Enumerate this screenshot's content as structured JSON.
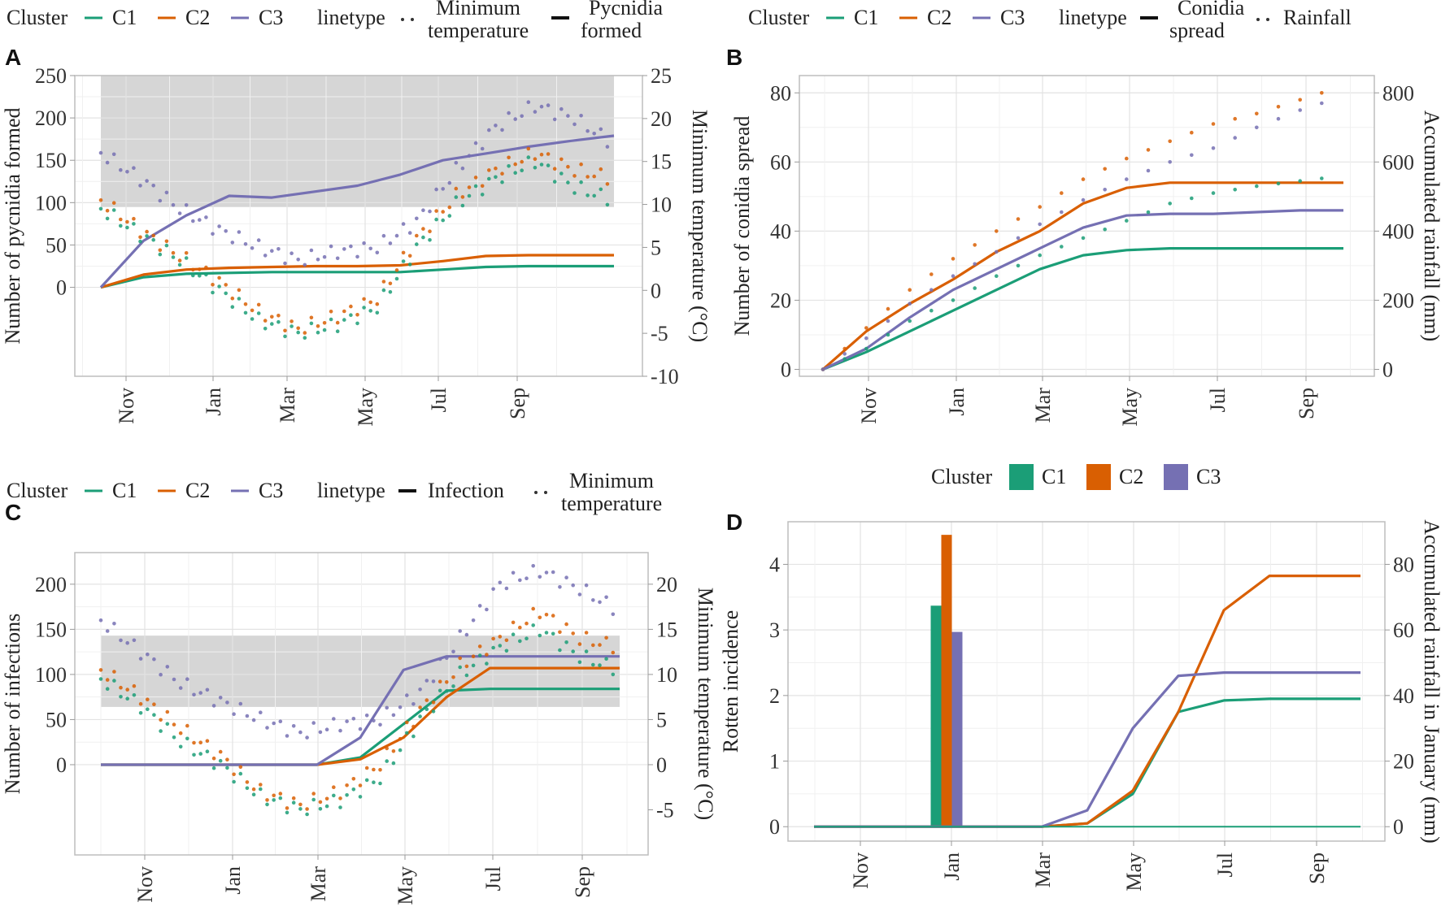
{
  "colors": {
    "C1": "#1b9e77",
    "C2": "#d95f02",
    "C3": "#7570b3",
    "shade": "#d6d6d6"
  },
  "chart_data": [
    {
      "panel": "A",
      "type": "line",
      "legend": {
        "cluster_title": "Cluster",
        "clusters": [
          "C1",
          "C2",
          "C3"
        ],
        "linetype_title": "linetype",
        "linetypes": [
          {
            "label_lines": [
              "Minimum",
              "temperature"
            ],
            "style": "dotted"
          },
          {
            "label_lines": [
              "Pycnidia",
              "formed"
            ],
            "style": "solid"
          }
        ],
        "position": "top"
      },
      "xlabel": "",
      "x_ticks": [
        "Nov",
        "Jan",
        "Mar",
        "May",
        "Jul",
        "Sep"
      ],
      "x_range": [
        "Oct",
        "Sep"
      ],
      "ylabel": "Number of pycnidia formed",
      "y_ticks": [
        0,
        50,
        100,
        150,
        200,
        250
      ],
      "ylim": [
        -105,
        250
      ],
      "y2label": "Minimum temperature (°C)",
      "y2_ticks": [
        -10,
        -5,
        0,
        5,
        10,
        15,
        20,
        25
      ],
      "y2lim": [
        -10,
        25
      ],
      "shaded_band_y2": [
        9.7,
        25
      ],
      "grid": true,
      "solid_series_month_index": [
        0,
        1,
        2,
        3,
        4,
        5,
        6,
        7,
        8,
        9,
        10,
        11,
        12
      ],
      "series": [
        {
          "name": "C1",
          "kind": "Pycnidia formed",
          "values": [
            0,
            12,
            16,
            17,
            18,
            18,
            18,
            18,
            21,
            24,
            25,
            25,
            25
          ]
        },
        {
          "name": "C2",
          "kind": "Pycnidia formed",
          "values": [
            0,
            15,
            21,
            23,
            24,
            25,
            25,
            26,
            31,
            37,
            38,
            38,
            38
          ]
        },
        {
          "name": "C3",
          "kind": "Pycnidia formed",
          "values": [
            0,
            55,
            85,
            108,
            106,
            113,
            120,
            133,
            150,
            158,
            166,
            173,
            179
          ]
        },
        {
          "name": "C1",
          "kind": "Minimum temperature",
          "values": [
            9.5,
            6.5,
            3.5,
            0,
            -3.5,
            -5,
            -4,
            -2,
            5,
            10,
            13,
            15,
            12,
            10.5
          ]
        },
        {
          "name": "C2",
          "kind": "Minimum temperature",
          "values": [
            10.5,
            7,
            4,
            1,
            -2.5,
            -4.5,
            -3,
            -1,
            6,
            11,
            14,
            16,
            14,
            13
          ]
        },
        {
          "name": "C3",
          "kind": "Minimum temperature",
          "values": [
            16,
            13,
            9.5,
            7,
            5,
            3.5,
            4.5,
            5,
            8,
            14,
            19,
            21.5,
            20,
            17
          ]
        }
      ]
    },
    {
      "panel": "B",
      "type": "line",
      "legend": {
        "cluster_title": "Cluster",
        "clusters": [
          "C1",
          "C2",
          "C3"
        ],
        "linetype_title": "linetype",
        "linetypes": [
          {
            "label_lines": [
              "Conidia",
              "spread"
            ],
            "style": "solid"
          },
          {
            "label_lines": [
              "Rainfall"
            ],
            "style": "dotted"
          }
        ],
        "position": "top"
      },
      "x_ticks": [
        "Nov",
        "Jan",
        "Mar",
        "May",
        "Jul",
        "Sep"
      ],
      "ylabel": "Number of conidia spread",
      "y_ticks": [
        0,
        20,
        40,
        60,
        80
      ],
      "ylim": [
        -2,
        85
      ],
      "y2label": "Accumulated rainfall (mm)",
      "y2_ticks": [
        0,
        200,
        400,
        600,
        800
      ],
      "y2lim": [
        -20,
        850
      ],
      "grid": true,
      "series": [
        {
          "name": "C1",
          "kind": "Conidia spread",
          "values": [
            0,
            5,
            11,
            17,
            23,
            29,
            33,
            34.5,
            35,
            35,
            35,
            35,
            35
          ]
        },
        {
          "name": "C2",
          "kind": "Conidia spread",
          "values": [
            0,
            11,
            19,
            26,
            34,
            40,
            48,
            52.5,
            54,
            54,
            54,
            54,
            54
          ]
        },
        {
          "name": "C3",
          "kind": "Conidia spread",
          "values": [
            0,
            6,
            15,
            23,
            29,
            35,
            41,
            44.5,
            45,
            45,
            45.5,
            46,
            46
          ]
        },
        {
          "name": "C1",
          "kind": "Rainfall",
          "values": [
            0,
            60,
            140,
            200,
            270,
            330,
            380,
            430,
            480,
            510,
            530,
            545,
            560
          ]
        },
        {
          "name": "C2",
          "kind": "Rainfall",
          "values": [
            0,
            120,
            230,
            320,
            400,
            470,
            550,
            610,
            660,
            710,
            740,
            780,
            820
          ]
        },
        {
          "name": "C3",
          "kind": "Rainfall",
          "values": [
            0,
            90,
            190,
            270,
            340,
            420,
            490,
            550,
            600,
            640,
            700,
            750,
            790
          ]
        }
      ]
    },
    {
      "panel": "C",
      "type": "line",
      "legend": {
        "cluster_title": "Cluster",
        "clusters": [
          "C1",
          "C2",
          "C3"
        ],
        "linetype_title": "linetype",
        "linetypes": [
          {
            "label_lines": [
              "Infection"
            ],
            "style": "solid"
          },
          {
            "label_lines": [
              "Minimum",
              "temperature"
            ],
            "style": "dotted"
          }
        ],
        "position": "top"
      },
      "x_ticks": [
        "Nov",
        "Jan",
        "Mar",
        "May",
        "Jul",
        "Sep"
      ],
      "ylabel": "Number of infections",
      "y_ticks": [
        0,
        50,
        100,
        150,
        200
      ],
      "ylim": [
        -100,
        235
      ],
      "y2label": "Minimum temperature (°C)",
      "y2_ticks": [
        -5,
        0,
        5,
        10,
        15,
        20
      ],
      "y2lim": [
        -10,
        23.5
      ],
      "shaded_band_y2": [
        6.4,
        14.3
      ],
      "grid": true,
      "series": [
        {
          "name": "C1",
          "kind": "Infection",
          "values": [
            0,
            0,
            0,
            0,
            0,
            0,
            8,
            45,
            82,
            84,
            84,
            84,
            84
          ]
        },
        {
          "name": "C2",
          "kind": "Infection",
          "values": [
            0,
            0,
            0,
            0,
            0,
            0,
            6,
            30,
            75,
            107,
            107,
            107,
            107
          ]
        },
        {
          "name": "C3",
          "kind": "Infection",
          "values": [
            0,
            0,
            0,
            0,
            0,
            0,
            30,
            105,
            120,
            120,
            120,
            120,
            120
          ]
        },
        {
          "name": "C1",
          "kind": "Minimum temperature",
          "values": [
            9.5,
            6.5,
            2.5,
            0,
            -3.5,
            -5,
            -4,
            -1.5,
            5,
            10,
            13,
            15,
            12,
            10.5
          ]
        },
        {
          "name": "C2",
          "kind": "Minimum temperature",
          "values": [
            10.5,
            7.5,
            4,
            1,
            -3,
            -4.5,
            -3,
            0,
            6,
            11,
            14,
            17,
            14,
            13
          ]
        },
        {
          "name": "C3",
          "kind": "Minimum temperature",
          "values": [
            16,
            12.5,
            9,
            7,
            5,
            3.5,
            4.5,
            5,
            8,
            14,
            20,
            21.5,
            19.5,
            17
          ]
        }
      ]
    },
    {
      "panel": "D",
      "type": "bar+line",
      "legend": {
        "cluster_title": "Cluster",
        "clusters": [
          "C1",
          "C2",
          "C3"
        ],
        "style": "filled-box",
        "position": "top"
      },
      "x_ticks": [
        "Nov",
        "Jan",
        "Mar",
        "May",
        "Jul",
        "Sep"
      ],
      "ylabel": "Rotten incidence",
      "y_ticks": [
        0,
        1,
        2,
        3,
        4
      ],
      "ylim": [
        -0.22,
        4.65
      ],
      "y2label": "Accumulated rainfall in January (mm)",
      "y2_ticks": [
        0,
        20,
        40,
        60,
        80
      ],
      "y2lim": [
        -4.4,
        93
      ],
      "grid": true,
      "bars": {
        "date": "Jan",
        "values": [
          {
            "name": "C1",
            "value": 3.37
          },
          {
            "name": "C2",
            "value": 4.45
          },
          {
            "name": "C3",
            "value": 2.97
          }
        ]
      },
      "series": [
        {
          "name": "C1",
          "kind": "Rotten incidence (cumulative)",
          "values": [
            0,
            0,
            0,
            0,
            0,
            0,
            1,
            10,
            35,
            38.5,
            39,
            39,
            39
          ]
        },
        {
          "name": "C2",
          "kind": "Rotten incidence (cumulative)",
          "values": [
            0,
            0,
            0,
            0,
            0,
            0,
            1,
            11,
            35,
            66,
            76.5,
            76.5,
            76.5
          ]
        },
        {
          "name": "C3",
          "kind": "Rotten incidence (cumulative)",
          "values": [
            0,
            0,
            0,
            0,
            0,
            0,
            5,
            30,
            46,
            47,
            47,
            47,
            47
          ]
        },
        {
          "name": "C1",
          "kind": "Baseline",
          "values": [
            0,
            0,
            0,
            0,
            0,
            0,
            0,
            0,
            0,
            0,
            0,
            0,
            0
          ]
        }
      ]
    }
  ]
}
